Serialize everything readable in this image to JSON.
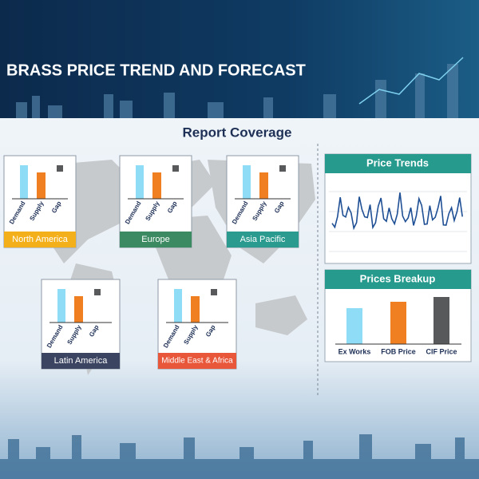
{
  "header": {
    "title": "BRASS PRICE TREND AND FORECAST"
  },
  "coverage": {
    "title": "Report Coverage",
    "bar_labels": [
      "Demand",
      "Supply",
      "Gap"
    ],
    "regions": [
      {
        "name": "North America",
        "color": "#f4b01b"
      },
      {
        "name": "Europe",
        "color": "#3b8a62"
      },
      {
        "name": "Asia Pacific",
        "color": "#2b9b8f"
      },
      {
        "name": "Latin America",
        "color": "#3b4562"
      },
      {
        "name": "Middle East & Africa",
        "color": "#e9573a"
      }
    ]
  },
  "price_trends": {
    "title": "Price Trends",
    "color": "#259a8d"
  },
  "prices_breakup": {
    "title": "Prices Breakup",
    "color": "#259a8d",
    "labels": [
      "Ex Works",
      "FOB Price",
      "CIF Price"
    ]
  }
}
